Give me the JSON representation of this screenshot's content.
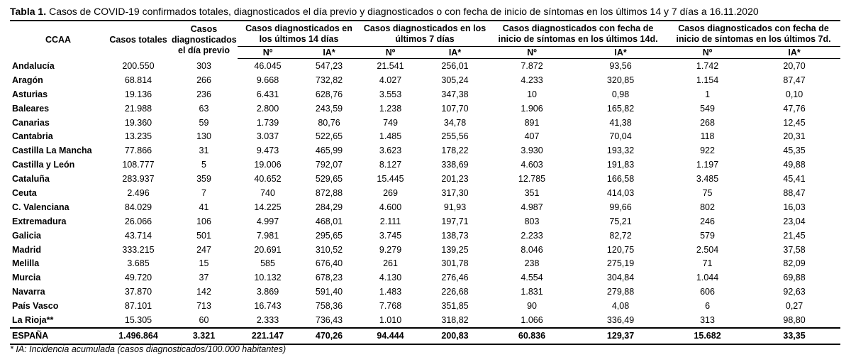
{
  "caption": {
    "label": "Tabla 1.",
    "text": "Casos de COVID-19 confirmados totales, diagnosticados el día previo y diagnosticados o con fecha de inicio de síntomas en los últimos 14 y 7 días a 16.11.2020"
  },
  "table": {
    "headers": [
      "CCAA",
      "Casos totales",
      "Casos diagnosticados el día previo"
    ],
    "groups": [
      "Casos diagnosticados en los últimos 14 días",
      "Casos diagnosticados en los últimos 7 días",
      "Casos diagnosticados con fecha de inicio de síntomas en los últimos 14d.",
      "Casos diagnosticados con fecha de inicio de síntomas en los últimos 7d."
    ],
    "subheaders": [
      "Nº",
      "IA*",
      "Nº",
      "IA*",
      "Nº",
      "IA*",
      "Nº",
      "IA*"
    ],
    "rows": [
      [
        "Andalucía",
        "200.550",
        "303",
        "46.045",
        "547,23",
        "21.541",
        "256,01",
        "7.872",
        "93,56",
        "1.742",
        "20,70"
      ],
      [
        "Aragón",
        "68.814",
        "266",
        "9.668",
        "732,82",
        "4.027",
        "305,24",
        "4.233",
        "320,85",
        "1.154",
        "87,47"
      ],
      [
        "Asturias",
        "19.136",
        "236",
        "6.431",
        "628,76",
        "3.553",
        "347,38",
        "10",
        "0,98",
        "1",
        "0,10"
      ],
      [
        "Baleares",
        "21.988",
        "63",
        "2.800",
        "243,59",
        "1.238",
        "107,70",
        "1.906",
        "165,82",
        "549",
        "47,76"
      ],
      [
        "Canarias",
        "19.360",
        "59",
        "1.739",
        "80,76",
        "749",
        "34,78",
        "891",
        "41,38",
        "268",
        "12,45"
      ],
      [
        "Cantabria",
        "13.235",
        "130",
        "3.037",
        "522,65",
        "1.485",
        "255,56",
        "407",
        "70,04",
        "118",
        "20,31"
      ],
      [
        "Castilla La Mancha",
        "77.866",
        "31",
        "9.473",
        "465,99",
        "3.623",
        "178,22",
        "3.930",
        "193,32",
        "922",
        "45,35"
      ],
      [
        "Castilla y León",
        "108.777",
        "5",
        "19.006",
        "792,07",
        "8.127",
        "338,69",
        "4.603",
        "191,83",
        "1.197",
        "49,88"
      ],
      [
        "Cataluña",
        "283.937",
        "359",
        "40.652",
        "529,65",
        "15.445",
        "201,23",
        "12.785",
        "166,58",
        "3.485",
        "45,41"
      ],
      [
        "Ceuta",
        "2.496",
        "7",
        "740",
        "872,88",
        "269",
        "317,30",
        "351",
        "414,03",
        "75",
        "88,47"
      ],
      [
        "C. Valenciana",
        "84.029",
        "41",
        "14.225",
        "284,29",
        "4.600",
        "91,93",
        "4.987",
        "99,66",
        "802",
        "16,03"
      ],
      [
        "Extremadura",
        "26.066",
        "106",
        "4.997",
        "468,01",
        "2.111",
        "197,71",
        "803",
        "75,21",
        "246",
        "23,04"
      ],
      [
        "Galicia",
        "43.714",
        "501",
        "7.981",
        "295,65",
        "3.745",
        "138,73",
        "2.233",
        "82,72",
        "579",
        "21,45"
      ],
      [
        "Madrid",
        "333.215",
        "247",
        "20.691",
        "310,52",
        "9.279",
        "139,25",
        "8.046",
        "120,75",
        "2.504",
        "37,58"
      ],
      [
        "Melilla",
        "3.685",
        "15",
        "585",
        "676,40",
        "261",
        "301,78",
        "238",
        "275,19",
        "71",
        "82,09"
      ],
      [
        "Murcia",
        "49.720",
        "37",
        "10.132",
        "678,23",
        "4.130",
        "276,46",
        "4.554",
        "304,84",
        "1.044",
        "69,88"
      ],
      [
        "Navarra",
        "37.870",
        "142",
        "3.869",
        "591,40",
        "1.483",
        "226,68",
        "1.831",
        "279,88",
        "606",
        "92,63"
      ],
      [
        "País Vasco",
        "87.101",
        "713",
        "16.743",
        "758,36",
        "7.768",
        "351,85",
        "90",
        "4,08",
        "6",
        "0,27"
      ],
      [
        "La Rioja**",
        "15.305",
        "60",
        "2.333",
        "736,43",
        "1.010",
        "318,82",
        "1.066",
        "336,49",
        "313",
        "98,80"
      ]
    ],
    "total": [
      "ESPAÑA",
      "1.496.864",
      "3.321",
      "221.147",
      "470,26",
      "94.444",
      "200,83",
      "60.836",
      "129,37",
      "15.682",
      "33,35"
    ]
  },
  "footnote": "* IA: Incidencia acumulada (casos diagnosticados/100.000 habitantes)"
}
